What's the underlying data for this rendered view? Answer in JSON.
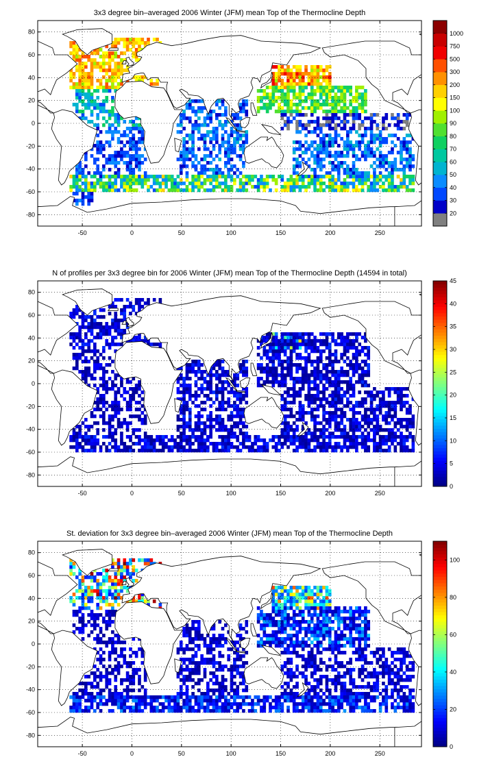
{
  "chart_data": [
    {
      "type": "heatmap",
      "title": "3x3 degree bin–averaged 2006 Winter (JFM) mean Top of the Thermocline Depth",
      "xlim": [
        -95,
        292
      ],
      "ylim": [
        -90,
        90
      ],
      "x_ticks": [
        -50,
        0,
        50,
        100,
        150,
        200,
        250
      ],
      "y_ticks": [
        80,
        60,
        40,
        20,
        0,
        -20,
        -40,
        -60,
        -80
      ],
      "grid": true,
      "colorbar": {
        "position": "right",
        "scale": "categorical",
        "labels": [
          "20",
          "30",
          "40",
          "50",
          "60",
          "70",
          "80",
          "90",
          "100",
          "150",
          "200",
          "300",
          "500",
          "750",
          "1000"
        ],
        "colors": [
          "#808080",
          "#0000c8",
          "#0048ff",
          "#0a8cff",
          "#00b4d0",
          "#00c8a0",
          "#10d060",
          "#50e030",
          "#a0f000",
          "#ffff00",
          "#ffd000",
          "#ff9000",
          "#ff5000",
          "#f00000",
          "#c80000",
          "#8c0000"
        ]
      },
      "regions": [
        {
          "name": "north-atlantic",
          "lon": [
            -65,
            30
          ],
          "lat": [
            30,
            75
          ],
          "levels": [
            8,
            12
          ],
          "density": 0.72
        },
        {
          "name": "north-pacific-kuroshio",
          "lon": [
            140,
            200
          ],
          "lat": [
            30,
            50
          ],
          "levels": [
            8,
            13
          ],
          "density": 0.8
        },
        {
          "name": "north-pacific-subtropic",
          "lon": [
            125,
            235
          ],
          "lat": [
            8,
            32
          ],
          "levels": [
            5,
            9
          ],
          "density": 0.68
        },
        {
          "name": "tropical-atlantic",
          "lon": [
            -60,
            15
          ],
          "lat": [
            -5,
            30
          ],
          "levels": [
            2,
            6
          ],
          "density": 0.5
        },
        {
          "name": "equatorial-pacific",
          "lon": [
            150,
            280
          ],
          "lat": [
            -8,
            8
          ],
          "levels": [
            0,
            2
          ],
          "density": 0.55
        },
        {
          "name": "indian-ocean",
          "lon": [
            45,
            115
          ],
          "lat": [
            -45,
            20
          ],
          "levels": [
            1,
            4
          ],
          "density": 0.55
        },
        {
          "name": "south-pacific",
          "lon": [
            160,
            285
          ],
          "lat": [
            -50,
            -8
          ],
          "levels": [
            1,
            4
          ],
          "density": 0.55
        },
        {
          "name": "south-atlantic",
          "lon": [
            -60,
            15
          ],
          "lat": [
            -50,
            -5
          ],
          "levels": [
            1,
            3
          ],
          "density": 0.5
        },
        {
          "name": "southern-ocean",
          "lon": [
            -65,
            285
          ],
          "lat": [
            -62,
            -45
          ],
          "levels": [
            2,
            10
          ],
          "density": 0.72
        },
        {
          "name": "drake-passage",
          "lon": [
            -60,
            -40
          ],
          "lat": [
            -72,
            -62
          ],
          "levels": [
            1,
            3
          ],
          "density": 0.6
        }
      ]
    },
    {
      "type": "heatmap",
      "title": "N of profiles per 3x3 degree bin for 2006 Winter (JFM) mean Top of the Thermocline Depth  (14594 in total)",
      "xlim": [
        -95,
        292
      ],
      "ylim": [
        -90,
        90
      ],
      "x_ticks": [
        -50,
        0,
        50,
        100,
        150,
        200,
        250
      ],
      "y_ticks": [
        80,
        60,
        40,
        20,
        0,
        -20,
        -40,
        -60,
        -80
      ],
      "grid": true,
      "colorbar": {
        "position": "right",
        "scale": "continuous",
        "range": [
          0,
          45
        ],
        "ticks": [
          0,
          5,
          10,
          15,
          20,
          25,
          30,
          35,
          40,
          45
        ],
        "colormap": "jet"
      },
      "regions": [
        {
          "name": "north-atlantic",
          "lon": [
            -65,
            30
          ],
          "lat": [
            30,
            75
          ],
          "levels": [
            1,
            8
          ],
          "density": 0.55
        },
        {
          "name": "kuroshio",
          "lon": [
            140,
            170
          ],
          "lat": [
            28,
            45
          ],
          "levels": [
            10,
            40
          ],
          "density": 0.9
        },
        {
          "name": "north-pacific",
          "lon": [
            125,
            240
          ],
          "lat": [
            -5,
            45
          ],
          "levels": [
            1,
            8
          ],
          "density": 0.7
        },
        {
          "name": "tropical-atlantic",
          "lon": [
            -60,
            15
          ],
          "lat": [
            -5,
            30
          ],
          "levels": [
            1,
            6
          ],
          "density": 0.5
        },
        {
          "name": "indian-ocean",
          "lon": [
            45,
            115
          ],
          "lat": [
            -45,
            20
          ],
          "levels": [
            1,
            8
          ],
          "density": 0.6
        },
        {
          "name": "south-pacific",
          "lon": [
            150,
            285
          ],
          "lat": [
            -50,
            -5
          ],
          "levels": [
            1,
            8
          ],
          "density": 0.6
        },
        {
          "name": "south-atlantic",
          "lon": [
            -60,
            15
          ],
          "lat": [
            -50,
            -5
          ],
          "levels": [
            1,
            6
          ],
          "density": 0.5
        },
        {
          "name": "southern-ocean",
          "lon": [
            -65,
            285
          ],
          "lat": [
            -62,
            -45
          ],
          "levels": [
            1,
            8
          ],
          "density": 0.72
        }
      ]
    },
    {
      "type": "heatmap",
      "title": "St. deviation for 3x3 degree bin–averaged 2006 Winter (JFM) mean Top of the Thermocline Depth",
      "xlim": [
        -95,
        292
      ],
      "ylim": [
        -90,
        90
      ],
      "x_ticks": [
        -50,
        0,
        50,
        100,
        150,
        200,
        250
      ],
      "y_ticks": [
        80,
        60,
        40,
        20,
        0,
        -20,
        -40,
        -60,
        -80
      ],
      "grid": true,
      "colorbar": {
        "position": "right",
        "scale": "continuous",
        "range": [
          0,
          110
        ],
        "ticks": [
          0,
          20,
          40,
          60,
          80,
          100
        ],
        "colormap": "jet"
      },
      "regions": [
        {
          "name": "north-atlantic",
          "lon": [
            -65,
            30
          ],
          "lat": [
            30,
            75
          ],
          "levels": [
            15,
            110
          ],
          "density": 0.65
        },
        {
          "name": "kuroshio",
          "lon": [
            140,
            200
          ],
          "lat": [
            30,
            50
          ],
          "levels": [
            20,
            90
          ],
          "density": 0.8
        },
        {
          "name": "north-pacific",
          "lon": [
            125,
            240
          ],
          "lat": [
            -5,
            32
          ],
          "levels": [
            5,
            35
          ],
          "density": 0.7
        },
        {
          "name": "tropical-atlantic",
          "lon": [
            -60,
            15
          ],
          "lat": [
            -5,
            30
          ],
          "levels": [
            3,
            15
          ],
          "density": 0.5
        },
        {
          "name": "indian-ocean",
          "lon": [
            45,
            115
          ],
          "lat": [
            -45,
            20
          ],
          "levels": [
            3,
            18
          ],
          "density": 0.55
        },
        {
          "name": "south-pacific",
          "lon": [
            150,
            285
          ],
          "lat": [
            -50,
            -5
          ],
          "levels": [
            3,
            18
          ],
          "density": 0.55
        },
        {
          "name": "south-atlantic",
          "lon": [
            -60,
            15
          ],
          "lat": [
            -50,
            -5
          ],
          "levels": [
            3,
            15
          ],
          "density": 0.5
        },
        {
          "name": "southern-ocean",
          "lon": [
            -65,
            285
          ],
          "lat": [
            -62,
            -45
          ],
          "levels": [
            5,
            30
          ],
          "density": 0.72
        }
      ]
    }
  ]
}
